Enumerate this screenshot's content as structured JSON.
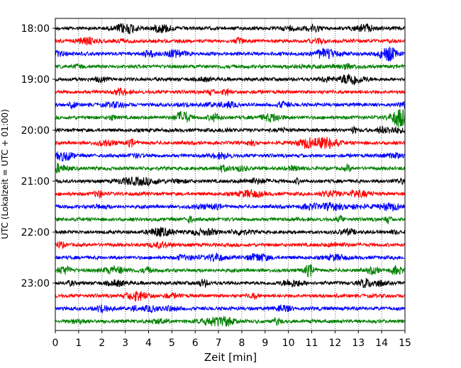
{
  "chart_data": {
    "type": "line",
    "title": "",
    "xlabel": "Zeit  [min]",
    "ylabel": "UTC (Lokalzeit = UTC + 01:00)",
    "xlim": [
      0,
      15
    ],
    "x_ticks": [
      0,
      1,
      2,
      3,
      4,
      5,
      6,
      7,
      8,
      9,
      10,
      11,
      12,
      13,
      14,
      15
    ],
    "x_tick_labels": [
      "0",
      "1",
      "2",
      "3",
      "4",
      "5",
      "6",
      "7",
      "8",
      "9",
      "10",
      "11",
      "12",
      "13",
      "14",
      "15"
    ],
    "y_tick_labels": [
      "18:00",
      "19:00",
      "20:00",
      "21:00",
      "22:00",
      "23:00"
    ],
    "grid": "vertical dotted",
    "trace_colors": [
      "#000000",
      "#ff0000",
      "#0000ff",
      "#008000"
    ],
    "traces": [
      {
        "start": "18:00"
      },
      {
        "start": "18:15"
      },
      {
        "start": "18:30"
      },
      {
        "start": "18:45"
      },
      {
        "start": "19:00"
      },
      {
        "start": "19:15"
      },
      {
        "start": "19:30"
      },
      {
        "start": "19:45"
      },
      {
        "start": "20:00"
      },
      {
        "start": "20:15"
      },
      {
        "start": "20:30"
      },
      {
        "start": "20:45"
      },
      {
        "start": "21:00"
      },
      {
        "start": "21:15"
      },
      {
        "start": "21:30"
      },
      {
        "start": "21:45"
      },
      {
        "start": "22:00"
      },
      {
        "start": "22:15"
      },
      {
        "start": "22:30"
      },
      {
        "start": "22:45"
      },
      {
        "start": "23:00"
      },
      {
        "start": "23:15"
      },
      {
        "start": "23:30"
      },
      {
        "start": "23:45"
      }
    ]
  }
}
